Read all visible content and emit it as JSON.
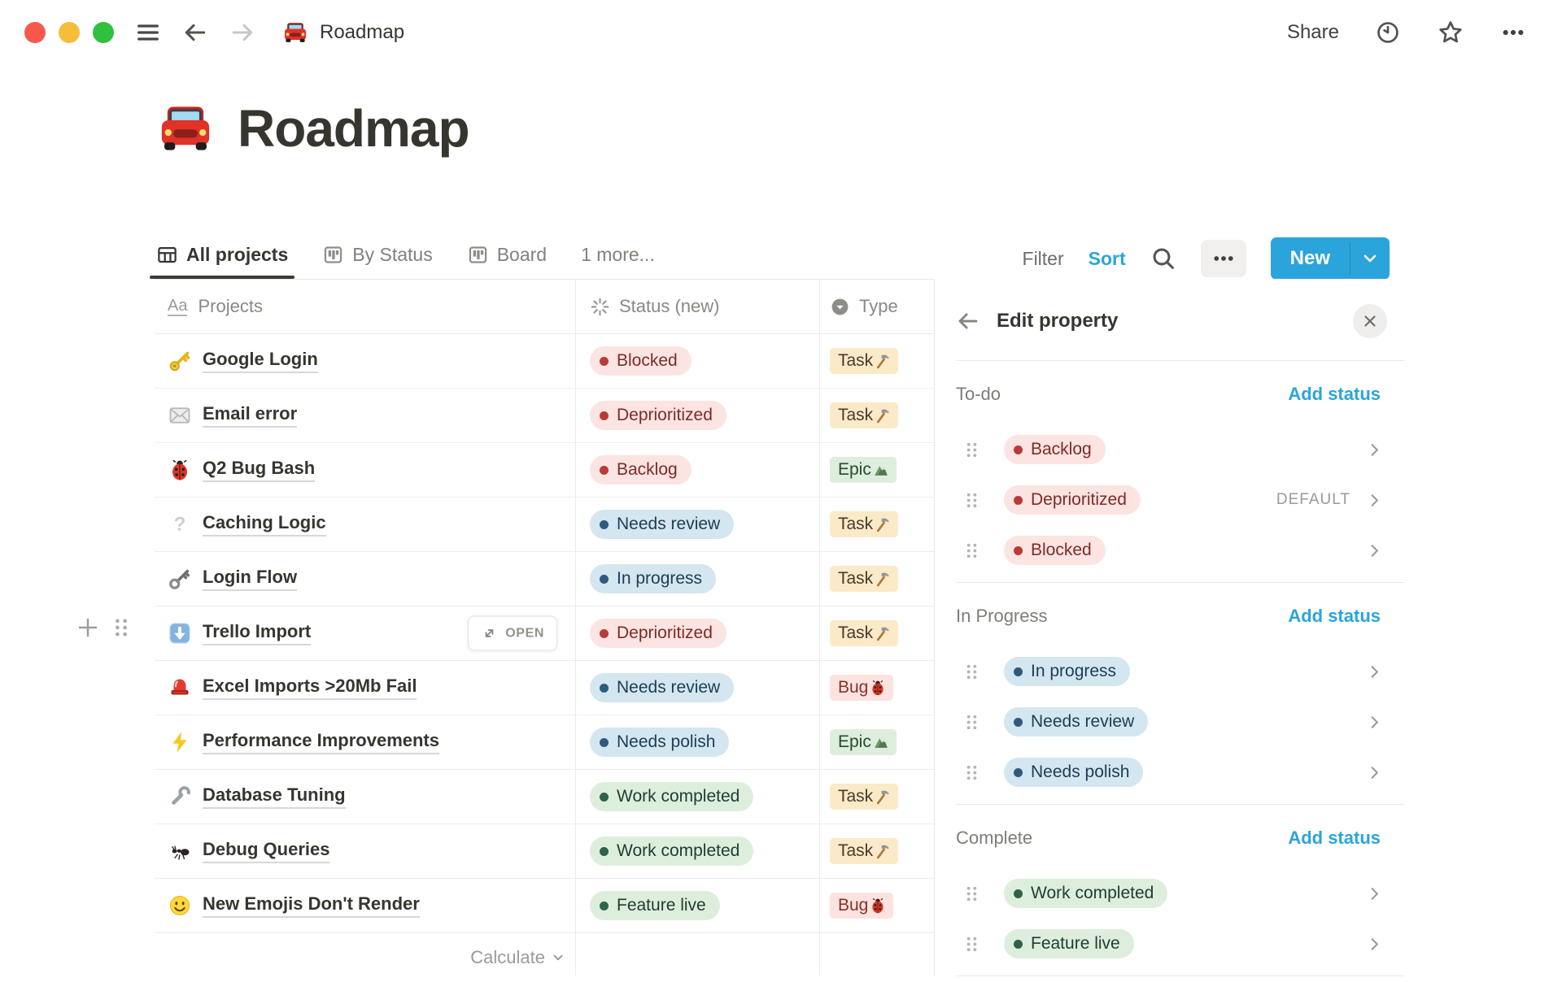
{
  "colors": {
    "accent": "#2ba4dc",
    "red_bg": "#fbe4e2",
    "red_dot": "#b93b36",
    "red_text": "#7d2b26",
    "blue_bg": "#d4e6f0",
    "blue_dot": "#30597d",
    "blue_text": "#1c3d55",
    "green_bg": "#ddeedd",
    "green_dot": "#2f624a",
    "green_text": "#1e3d2f",
    "yellow_bg": "#fbeac7",
    "yellow_text": "#4a3a2d"
  },
  "topbar": {
    "emoji": "🚘",
    "title": "Roadmap",
    "share_label": "Share"
  },
  "page": {
    "emoji": "🚘",
    "title": "Roadmap"
  },
  "views": {
    "tabs": [
      {
        "label": "All projects",
        "icon": "table-view",
        "active": true
      },
      {
        "label": "By Status",
        "icon": "board-view",
        "active": false
      },
      {
        "label": "Board",
        "icon": "board-view",
        "active": false
      },
      {
        "label": "1 more...",
        "icon": null,
        "active": false
      }
    ]
  },
  "toolbar": {
    "filter_label": "Filter",
    "sort_label": "Sort",
    "new_label": "New"
  },
  "table": {
    "columns": [
      {
        "label": "Projects",
        "icon": "title"
      },
      {
        "label": "Status (new)",
        "icon": "status"
      },
      {
        "label": "Type",
        "icon": "select"
      }
    ],
    "open_button_label": "OPEN",
    "footer_calculate_label": "Calculate",
    "rows": [
      {
        "emoji": "🔑",
        "icon": "key",
        "name": "Google Login",
        "status": {
          "label": "Blocked",
          "color": "red"
        },
        "type": {
          "label": "Task",
          "emoji": "🔨",
          "icon": "hammer",
          "color": "yellow"
        },
        "open": false
      },
      {
        "emoji": "✉️",
        "icon": "envelope",
        "name": "Email error",
        "status": {
          "label": "Deprioritized",
          "color": "red"
        },
        "type": {
          "label": "Task",
          "emoji": "🔨",
          "icon": "hammer",
          "color": "yellow"
        },
        "open": false
      },
      {
        "emoji": "🐞",
        "icon": "ladybug",
        "name": "Q2 Bug Bash",
        "status": {
          "label": "Backlog",
          "color": "red"
        },
        "type": {
          "label": "Epic",
          "emoji": "🏔️",
          "icon": "mountain",
          "color": "green"
        },
        "open": false
      },
      {
        "emoji": "❔",
        "icon": "question",
        "name": "Caching Logic",
        "status": {
          "label": "Needs review",
          "color": "blue"
        },
        "type": {
          "label": "Task",
          "emoji": "🔨",
          "icon": "hammer",
          "color": "yellow"
        },
        "open": false
      },
      {
        "emoji": "🗝️",
        "icon": "old-key",
        "name": "Login Flow",
        "status": {
          "label": "In progress",
          "color": "blue"
        },
        "type": {
          "label": "Task",
          "emoji": "🔨",
          "icon": "hammer",
          "color": "yellow"
        },
        "open": false
      },
      {
        "emoji": "⬇️",
        "icon": "down-button",
        "name": "Trello Import",
        "status": {
          "label": "Deprioritized",
          "color": "red"
        },
        "type": {
          "label": "Task",
          "emoji": "🔨",
          "icon": "hammer",
          "color": "yellow"
        },
        "open": true
      },
      {
        "emoji": "🚨",
        "icon": "siren",
        "name": "Excel Imports >20Mb Fail",
        "status": {
          "label": "Needs review",
          "color": "blue"
        },
        "type": {
          "label": "Bug",
          "emoji": "🐞",
          "icon": "ladybug",
          "color": "red"
        },
        "open": false
      },
      {
        "emoji": "⚡",
        "icon": "zap",
        "name": "Performance Improvements",
        "status": {
          "label": "Needs polish",
          "color": "blue"
        },
        "type": {
          "label": "Epic",
          "emoji": "🏔️",
          "icon": "mountain",
          "color": "green"
        },
        "open": false
      },
      {
        "emoji": "🔧",
        "icon": "wrench",
        "name": "Database Tuning",
        "status": {
          "label": "Work completed",
          "color": "green"
        },
        "type": {
          "label": "Task",
          "emoji": "🔨",
          "icon": "hammer",
          "color": "yellow"
        },
        "open": false
      },
      {
        "emoji": "🐜",
        "icon": "ant",
        "name": "Debug Queries",
        "status": {
          "label": "Work completed",
          "color": "green"
        },
        "type": {
          "label": "Task",
          "emoji": "🔨",
          "icon": "hammer",
          "color": "yellow"
        },
        "open": false
      },
      {
        "emoji": "🙂",
        "icon": "smiley",
        "name": "New Emojis Don't Render",
        "status": {
          "label": "Feature live",
          "color": "green"
        },
        "type": {
          "label": "Bug",
          "emoji": "🐞",
          "icon": "ladybug",
          "color": "red"
        },
        "open": false
      }
    ]
  },
  "panel": {
    "title": "Edit property",
    "sections": [
      {
        "name": "To-do",
        "add_label": "Add status",
        "items": [
          {
            "label": "Backlog",
            "color": "red",
            "badge": null
          },
          {
            "label": "Deprioritized",
            "color": "red",
            "badge": "DEFAULT"
          },
          {
            "label": "Blocked",
            "color": "red",
            "badge": null
          }
        ]
      },
      {
        "name": "In Progress",
        "add_label": "Add status",
        "items": [
          {
            "label": "In progress",
            "color": "blue",
            "badge": null
          },
          {
            "label": "Needs review",
            "color": "blue",
            "badge": null
          },
          {
            "label": "Needs polish",
            "color": "blue",
            "badge": null
          }
        ]
      },
      {
        "name": "Complete",
        "add_label": "Add status",
        "items": [
          {
            "label": "Work completed",
            "color": "green",
            "badge": null
          },
          {
            "label": "Feature live",
            "color": "green",
            "badge": null
          }
        ]
      }
    ]
  }
}
